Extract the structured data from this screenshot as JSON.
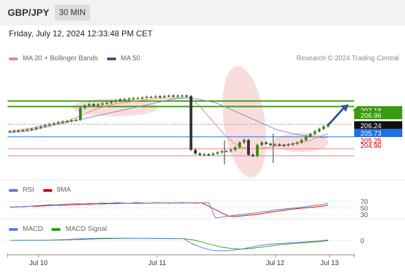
{
  "header": {
    "symbol": "GBP/JPY",
    "timeframe": "30 MIN",
    "datetime": "Friday, July 12, 2024 12:33:48 PM CET"
  },
  "legend": {
    "main": [
      {
        "label": "MA 20 + Bollinger Bands",
        "color": "#f08080"
      },
      {
        "label": "MA 50",
        "color": "#2f5597"
      }
    ],
    "rsi": [
      {
        "label": "RSI",
        "color": "#5b7fd6"
      },
      {
        "label": "9MA",
        "color": "#e00000"
      }
    ],
    "macd": [
      {
        "label": "MACD",
        "color": "#5b7fd6"
      },
      {
        "label": "MACD Signal",
        "color": "#3a9a10"
      }
    ]
  },
  "credit": "Research © 2024 Trading Central",
  "price_labels": [
    {
      "value": "207.18",
      "bg": "#3a9a10",
      "fg": "#ffffff"
    },
    {
      "value": "206.96",
      "bg": "#3a9a10",
      "fg": "#ffffff"
    },
    {
      "value": "206.24",
      "bg": "#111111",
      "fg": "#ffffff"
    },
    {
      "value": "205.73",
      "bg": "#1e6ee8",
      "fg": "#ffffff"
    },
    {
      "value": "205.25",
      "bg": "#ffffff",
      "fg": "#e00000"
    },
    {
      "value": "204.96",
      "bg": "#ffffff",
      "fg": "#e00000"
    }
  ],
  "rsi_levels": [
    "70",
    "50",
    "30"
  ],
  "macd_level": "0",
  "chart_data": {
    "type": "line",
    "instrument": "GBP/JPY",
    "timeframe": "30 MIN",
    "x_ticks": [
      "Jul 10",
      "Jul 11",
      "Jul 12",
      "Jul 13"
    ],
    "ylim": [
      204.0,
      208.5
    ],
    "price": [
      205.95,
      205.97,
      205.98,
      206.0,
      206.02,
      206.05,
      206.1,
      206.15,
      206.2,
      206.25,
      206.28,
      206.32,
      206.35,
      206.37,
      206.4,
      206.42,
      206.9,
      207.0,
      207.05,
      207.0,
      207.05,
      207.08,
      207.1,
      207.15,
      207.2,
      207.25,
      207.25,
      207.28,
      207.3,
      207.3,
      207.32,
      207.35,
      207.35,
      207.37,
      207.35,
      207.38,
      207.4,
      207.38,
      207.4,
      207.4,
      207.38,
      205.2,
      205.05,
      205.0,
      205.02,
      205.0,
      205.05,
      205.1,
      205.15,
      205.15,
      205.2,
      205.3,
      205.5,
      205.6,
      205.0,
      204.95,
      205.4,
      205.5,
      205.45,
      205.4,
      205.42,
      205.4,
      205.38,
      205.42,
      205.45,
      205.5,
      205.6,
      205.75,
      205.85,
      205.95,
      206.05,
      206.15,
      206.24
    ],
    "ma50": [
      205.9,
      205.92,
      205.94,
      205.96,
      206.0,
      206.05,
      206.1,
      206.15,
      206.2,
      206.25,
      206.3,
      206.35,
      206.4,
      206.45,
      206.5,
      206.55,
      206.6,
      206.65,
      206.7,
      206.75,
      206.8,
      206.85,
      206.9,
      206.95,
      207.0,
      207.05,
      207.1,
      207.15,
      207.2,
      207.25,
      207.28,
      207.3,
      207.3,
      207.28,
      207.25,
      207.2,
      207.15,
      207.1,
      207.0,
      206.9,
      206.8,
      206.7,
      206.6,
      206.5,
      206.4,
      206.3,
      206.2,
      206.1,
      206.0,
      205.95,
      205.9,
      205.85,
      205.8,
      205.78,
      205.75,
      205.72,
      205.7,
      205.7
    ],
    "ma20": [
      205.95,
      206.0,
      206.05,
      206.1,
      206.18,
      206.25,
      206.3,
      206.4,
      206.55,
      206.7,
      206.85,
      206.95,
      207.05,
      207.1,
      207.15,
      207.2,
      207.25,
      207.28,
      207.3,
      207.3,
      207.32,
      207.3,
      207.0,
      206.6,
      206.2,
      205.8,
      205.5,
      205.3,
      205.25,
      205.25,
      205.3,
      205.35,
      205.4,
      205.45,
      205.5,
      205.6,
      205.75,
      205.85
    ],
    "target_arrow": {
      "from": 206.2,
      "to": 207.05
    },
    "resistance_lines": [
      207.18,
      206.96
    ],
    "last_price": 206.24,
    "pivot": 205.73,
    "support_lines": [
      205.25,
      204.96
    ],
    "rsi": {
      "levels": [
        70,
        50,
        30
      ],
      "rsi": [
        52,
        54,
        53,
        55,
        57,
        58,
        60,
        59,
        61,
        62,
        63,
        62,
        64,
        63,
        65,
        64,
        66,
        65,
        64,
        66,
        65,
        64,
        66,
        65,
        64,
        65,
        66,
        65,
        64,
        65,
        66,
        20,
        22,
        25,
        28,
        30,
        33,
        35,
        38,
        40,
        44,
        46,
        48,
        50,
        52,
        55,
        58,
        60,
        64
      ],
      "ma9": [
        52,
        53,
        54,
        55,
        55,
        56,
        57,
        58,
        58,
        59,
        60,
        61,
        61,
        62,
        62,
        63,
        63,
        64,
        64,
        64,
        64,
        64,
        65,
        65,
        65,
        65,
        65,
        65,
        65,
        65,
        55,
        45,
        35,
        25,
        24,
        26,
        28,
        30,
        33,
        36,
        39,
        42,
        45,
        47,
        49,
        51,
        53,
        55,
        58
      ]
    },
    "macd": {
      "level": 0,
      "macd": [
        0,
        0.01,
        0.01,
        0.02,
        0.03,
        0.05,
        0.08,
        0.12,
        0.15,
        0.17,
        0.18,
        0.18,
        0.17,
        0.17,
        0.16,
        0.15,
        0.15,
        0.14,
        0.14,
        -0.3,
        -0.6,
        -0.8,
        -0.85,
        -0.8,
        -0.7,
        -0.55,
        -0.4,
        -0.3,
        -0.25,
        -0.2,
        -0.15,
        -0.1,
        -0.05,
        0.05
      ],
      "signal": [
        0,
        0,
        0.01,
        0.01,
        0.02,
        0.03,
        0.05,
        0.08,
        0.1,
        0.12,
        0.14,
        0.15,
        0.16,
        0.16,
        0.16,
        0.16,
        0.15,
        0.15,
        0.14,
        0.05,
        -0.15,
        -0.35,
        -0.55,
        -0.65,
        -0.7,
        -0.65,
        -0.55,
        -0.45,
        -0.35,
        -0.28,
        -0.22,
        -0.16,
        -0.1,
        -0.02
      ]
    }
  }
}
